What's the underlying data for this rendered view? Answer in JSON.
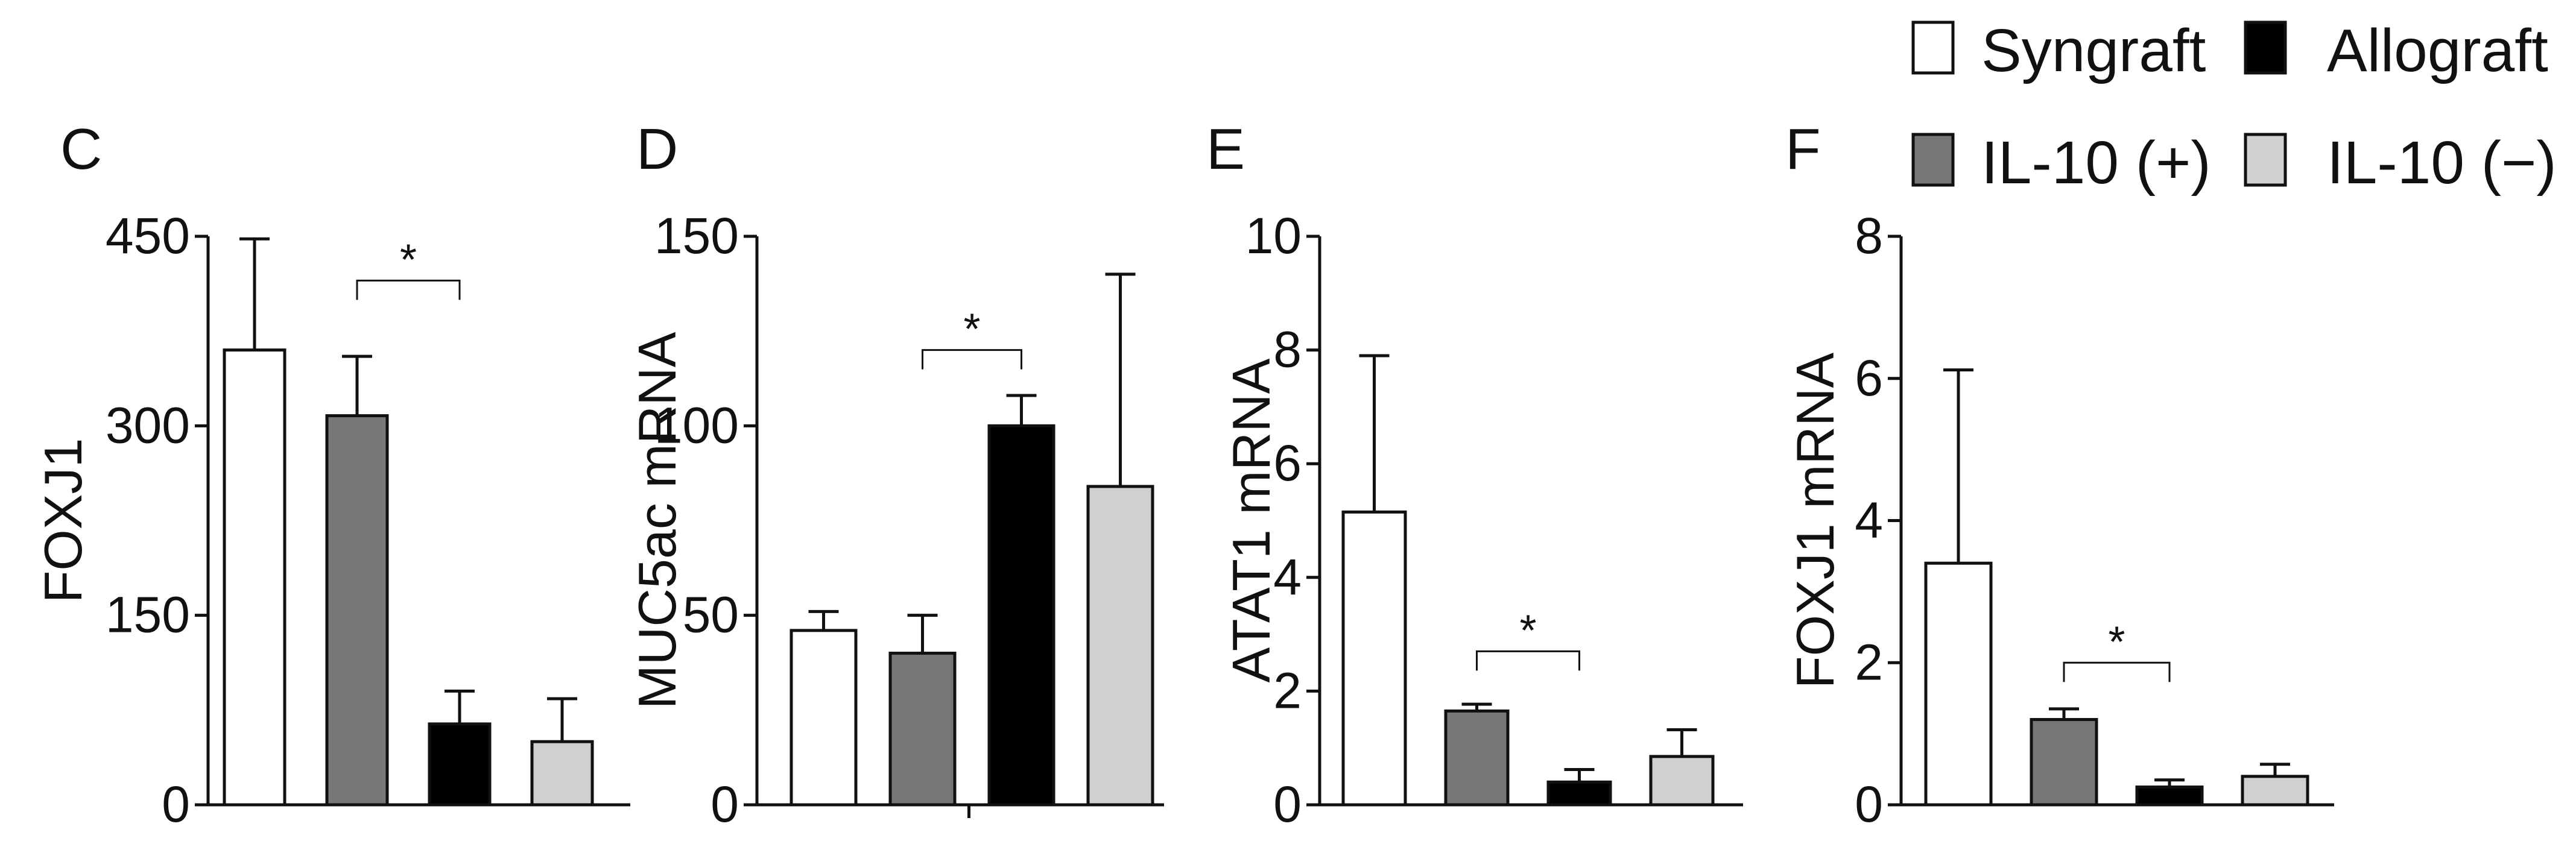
{
  "legend": {
    "entries": [
      {
        "label": "Syngraft",
        "color": "#ffffff"
      },
      {
        "label": "Allograft",
        "color": "#000000"
      },
      {
        "label": "IL-10 (+)",
        "color": "#777777"
      },
      {
        "label": "IL-10 (−)",
        "color": "#d0d0d0"
      }
    ]
  },
  "chart_data": [
    {
      "type": "bar",
      "panel": "C",
      "ylabel": "FOXJ1",
      "ylim": [
        0,
        450
      ],
      "yticks": [
        "0",
        "150",
        "300",
        "450"
      ],
      "categories": [
        "Syngraft",
        "IL-10 (+)",
        "Allograft",
        "IL-10 (−)"
      ],
      "colors": [
        "#ffffff",
        "#777777",
        "#000000",
        "#d0d0d0"
      ],
      "values": [
        360,
        308,
        64,
        50
      ],
      "errors": [
        88,
        47,
        26,
        34
      ],
      "significance": {
        "from": 1,
        "to": 2,
        "label": "*",
        "level": 415
      }
    },
    {
      "type": "bar",
      "panel": "D",
      "ylabel": "MUC5ac mRNA",
      "ylim": [
        0,
        150
      ],
      "yticks": [
        "0",
        "50",
        "100",
        "150"
      ],
      "categories": [
        "Syngraft",
        "IL-10 (+)",
        "Allograft",
        "IL-10 (−)"
      ],
      "colors": [
        "#ffffff",
        "#777777",
        "#000000",
        "#d0d0d0"
      ],
      "values": [
        46,
        40,
        100,
        84
      ],
      "errors": [
        5,
        10,
        8,
        56
      ],
      "significance": {
        "from": 1,
        "to": 2,
        "label": "*",
        "level": 120
      }
    },
    {
      "type": "bar",
      "panel": "E",
      "ylabel": "ATAT1 mRNA",
      "ylim": [
        0,
        10
      ],
      "yticks": [
        "0",
        "2",
        "4",
        "6",
        "8",
        "10"
      ],
      "categories": [
        "Syngraft",
        "IL-10 (+)",
        "Allograft",
        "IL-10 (−)"
      ],
      "colors": [
        "#ffffff",
        "#777777",
        "#000000",
        "#d0d0d0"
      ],
      "values": [
        5.15,
        1.65,
        0.4,
        0.85
      ],
      "errors": [
        2.75,
        0.12,
        0.22,
        0.47
      ],
      "significance": {
        "from": 1,
        "to": 2,
        "label": "*",
        "level": 2.7
      }
    },
    {
      "type": "bar",
      "panel": "F",
      "ylabel": "FOXJ1 mRNA",
      "ylim": [
        0,
        8
      ],
      "yticks": [
        "0",
        "2",
        "4",
        "6",
        "8"
      ],
      "categories": [
        "Syngraft",
        "IL-10 (+)",
        "Allograft",
        "IL-10 (−)"
      ],
      "colors": [
        "#ffffff",
        "#777777",
        "#000000",
        "#d0d0d0"
      ],
      "values": [
        3.4,
        1.2,
        0.25,
        0.4
      ],
      "errors": [
        2.72,
        0.15,
        0.1,
        0.17
      ],
      "significance": {
        "from": 1,
        "to": 2,
        "label": "*",
        "level": 2.0
      }
    }
  ]
}
